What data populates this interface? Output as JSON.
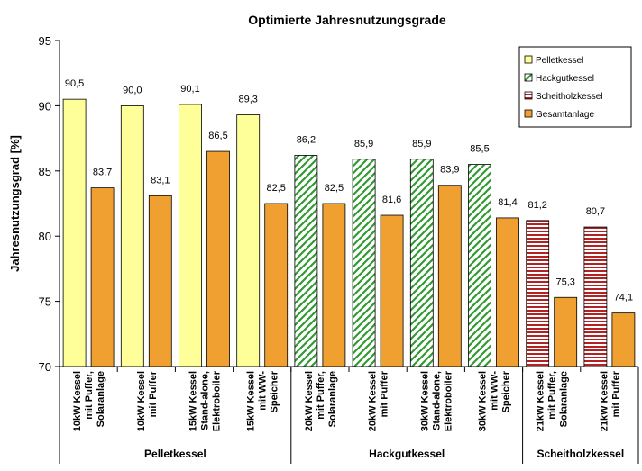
{
  "chart_data": {
    "type": "bar",
    "title": "Optimierte Jahresnutzungsgrade",
    "ylabel": "Jahresnutzungsgrad [%]",
    "xlabel": "",
    "ylim": [
      70,
      95
    ],
    "yticks": [
      "70",
      "75",
      "80",
      "85",
      "90",
      "95"
    ],
    "grid": false,
    "legend_position": "top-right",
    "legend": [
      {
        "name": "Pelletkessel",
        "pattern": "solid",
        "fill": "#ffff99",
        "line": "#000000"
      },
      {
        "name": "Hackgutkessel",
        "pattern": "diagonal",
        "fill": "#ffffff",
        "line": "#339933"
      },
      {
        "name": "Scheitholzkessel",
        "pattern": "horizontal",
        "fill": "#ffffff",
        "line": "#b22222"
      },
      {
        "name": "Gesamtanlage",
        "pattern": "solid",
        "fill": "#f0a030",
        "line": "#000000"
      }
    ],
    "groups": [
      {
        "name": "Pelletkessel",
        "categories": [
          0,
          1,
          2,
          3
        ]
      },
      {
        "name": "Hackgutkessel",
        "categories": [
          4,
          5,
          6,
          7
        ]
      },
      {
        "name": "Scheitholzkessel",
        "categories": [
          8,
          9
        ]
      }
    ],
    "categories": [
      {
        "lines": [
          "10kW Kessel",
          "mit Puffer,",
          "Solaranlage"
        ],
        "bars": [
          {
            "series": 0,
            "value": 90.5,
            "label": "90,5"
          },
          {
            "series": 3,
            "value": 83.7,
            "label": "83,7"
          }
        ]
      },
      {
        "lines": [
          "10kW Kessel",
          "mit Puffer"
        ],
        "bars": [
          {
            "series": 0,
            "value": 90.0,
            "label": "90,0"
          },
          {
            "series": 3,
            "value": 83.1,
            "label": "83,1"
          }
        ]
      },
      {
        "lines": [
          "15kW Kessel",
          "Stand-alone,",
          "Elektroboiler"
        ],
        "bars": [
          {
            "series": 0,
            "value": 90.1,
            "label": "90,1"
          },
          {
            "series": 3,
            "value": 86.5,
            "label": "86,5"
          }
        ]
      },
      {
        "lines": [
          "15kW Kessel",
          "mit WW-",
          "Speicher"
        ],
        "bars": [
          {
            "series": 0,
            "value": 89.3,
            "label": "89,3"
          },
          {
            "series": 3,
            "value": 82.5,
            "label": "82,5"
          }
        ]
      },
      {
        "lines": [
          "20kW Kessel",
          "mit Puffer,",
          "Solaranlage"
        ],
        "bars": [
          {
            "series": 1,
            "value": 86.2,
            "label": "86,2"
          },
          {
            "series": 3,
            "value": 82.5,
            "label": "82,5"
          }
        ]
      },
      {
        "lines": [
          "20kW Kessel",
          "mit Puffer"
        ],
        "bars": [
          {
            "series": 1,
            "value": 85.9,
            "label": "85,9"
          },
          {
            "series": 3,
            "value": 81.6,
            "label": "81,6"
          }
        ]
      },
      {
        "lines": [
          "30kW Kessel",
          "Stand-alone,",
          "Elektroboiler"
        ],
        "bars": [
          {
            "series": 1,
            "value": 85.9,
            "label": "85,9"
          },
          {
            "series": 3,
            "value": 83.9,
            "label": "83,9"
          }
        ]
      },
      {
        "lines": [
          "30kW Kessel",
          "mit WW-",
          "Speicher"
        ],
        "bars": [
          {
            "series": 1,
            "value": 85.5,
            "label": "85,5"
          },
          {
            "series": 3,
            "value": 81.4,
            "label": "81,4"
          }
        ]
      },
      {
        "lines": [
          "21kW Kessel",
          "mit Puffer,",
          "Solaranlage"
        ],
        "bars": [
          {
            "series": 2,
            "value": 81.2,
            "label": "81,2"
          },
          {
            "series": 3,
            "value": 75.3,
            "label": "75,3"
          }
        ]
      },
      {
        "lines": [
          "21kW Kessel",
          "mit Puffer"
        ],
        "bars": [
          {
            "series": 2,
            "value": 80.7,
            "label": "80,7"
          },
          {
            "series": 3,
            "value": 74.1,
            "label": "74,1"
          }
        ]
      }
    ]
  }
}
